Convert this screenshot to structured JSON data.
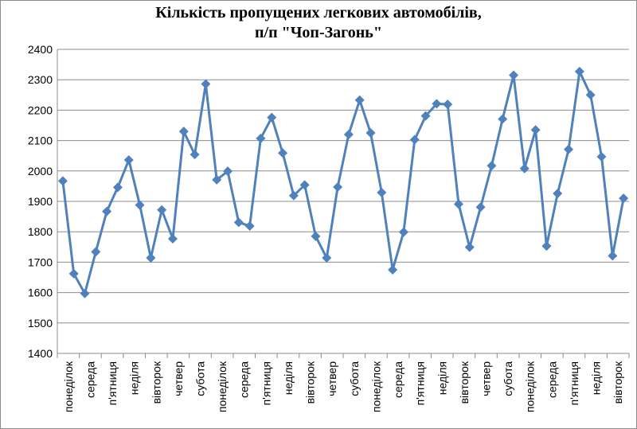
{
  "chart_data": {
    "type": "line",
    "title_line1": "Кількість пропущених легкових автомобілів,",
    "title_line2": "п/п \"Чоп-Загонь\"",
    "xlabel": "",
    "ylabel": "",
    "ylim": [
      1400,
      2400
    ],
    "yticks": [
      1400,
      1500,
      1600,
      1700,
      1800,
      1900,
      2000,
      2100,
      2200,
      2300,
      2400
    ],
    "grid": true,
    "legend": "none",
    "series_color": "#4f81bd",
    "tick_labels": [
      "понеділок",
      "середа",
      "п'ятниця",
      "неділя",
      "вівторок",
      "четвер",
      "субота",
      "понеділок",
      "середа",
      "п'ятниця",
      "неділя",
      "вівторок",
      "четвер",
      "субота",
      "понеділок",
      "середа",
      "п'ятниця",
      "неділя",
      "вівторок",
      "четвер",
      "субота",
      "понеділок",
      "середа",
      "п'ятниця",
      "неділя",
      "вівторок"
    ],
    "values": [
      1967,
      1662,
      1597,
      1734,
      1867,
      1946,
      2036,
      1888,
      1714,
      1872,
      1777,
      2130,
      2054,
      2286,
      1971,
      1999,
      1831,
      1819,
      2107,
      2176,
      2059,
      1919,
      1954,
      1785,
      1714,
      1947,
      2120,
      2233,
      2125,
      1929,
      1675,
      1799,
      2103,
      2181,
      2221,
      2219,
      1891,
      1749,
      1881,
      2017,
      2171,
      2315,
      2008,
      2135,
      1753,
      1926,
      2071,
      2327,
      2250,
      2047,
      1721,
      1910
    ]
  }
}
